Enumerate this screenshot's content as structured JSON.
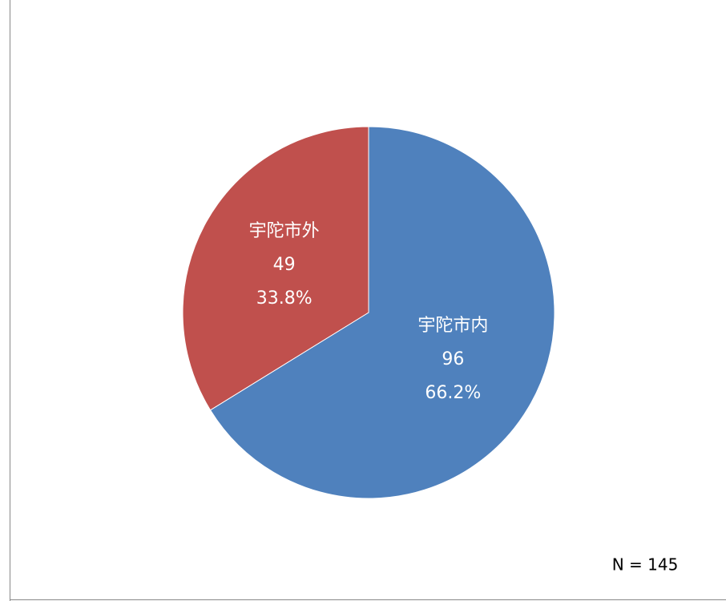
{
  "chart_data": {
    "type": "pie",
    "categories": [
      "宇陀市内",
      "宇陀市外"
    ],
    "values": [
      96,
      49
    ],
    "percentages": [
      66.2,
      33.8
    ],
    "percentage_labels": [
      "66.2%",
      "33.8%"
    ],
    "colors": [
      "#4f81bd",
      "#c0504d"
    ],
    "start_angle": 0,
    "direction": "clockwise",
    "annotation": "N = 145"
  }
}
